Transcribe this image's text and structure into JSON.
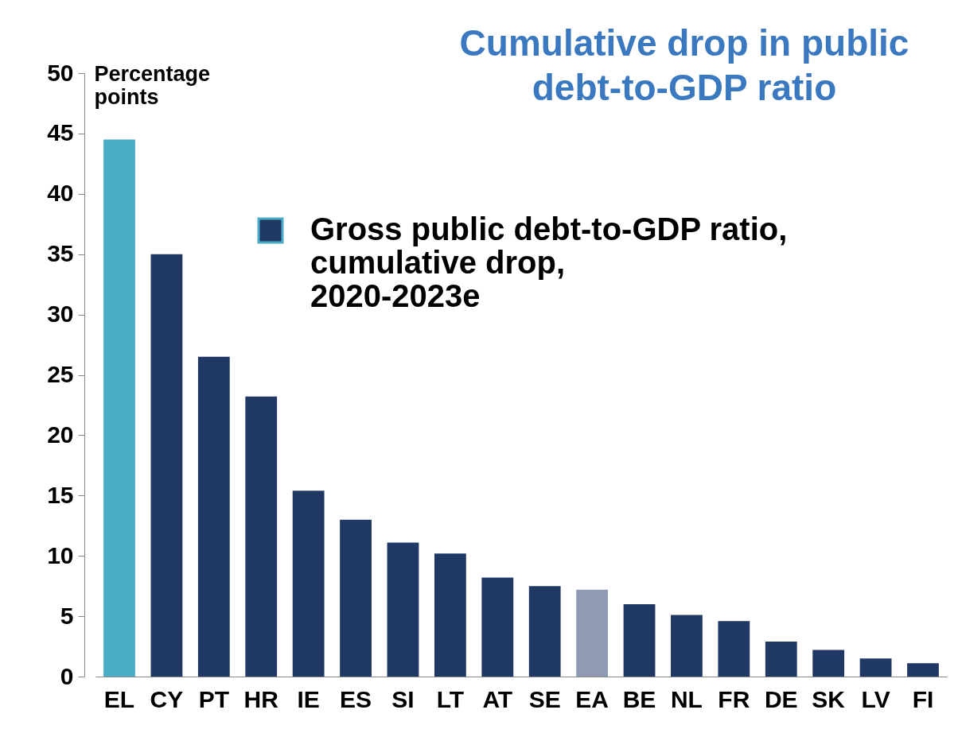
{
  "chart_data": {
    "type": "bar",
    "title": "Cumulative drop in public debt-to-GDP ratio",
    "ylabel": "Percentage points",
    "categories": [
      "EL",
      "CY",
      "PT",
      "HR",
      "IE",
      "ES",
      "SI",
      "LT",
      "AT",
      "SE",
      "EA",
      "BE",
      "NL",
      "FR",
      "DE",
      "SK",
      "LV",
      "FI"
    ],
    "series": [
      {
        "name": "Gross public debt-to-GDP ratio, cumulative drop, 2020-2023e",
        "color": "#203864",
        "colors": [
          "#4bacc6",
          "#203864",
          "#203864",
          "#203864",
          "#203864",
          "#203864",
          "#203864",
          "#203864",
          "#203864",
          "#203864",
          "#8f9ab5",
          "#203864",
          "#203864",
          "#203864",
          "#203864",
          "#203864",
          "#203864",
          "#203864"
        ],
        "values": [
          44.5,
          35.0,
          26.5,
          23.2,
          15.4,
          13.0,
          11.1,
          10.2,
          8.2,
          7.5,
          7.2,
          6.0,
          5.1,
          4.6,
          2.9,
          2.2,
          1.5,
          1.1
        ]
      }
    ],
    "ylim": [
      0,
      50
    ],
    "yticks": [
      0,
      5,
      10,
      15,
      20,
      25,
      30,
      35,
      40,
      45,
      50
    ],
    "grid": false,
    "legend": "top right"
  }
}
